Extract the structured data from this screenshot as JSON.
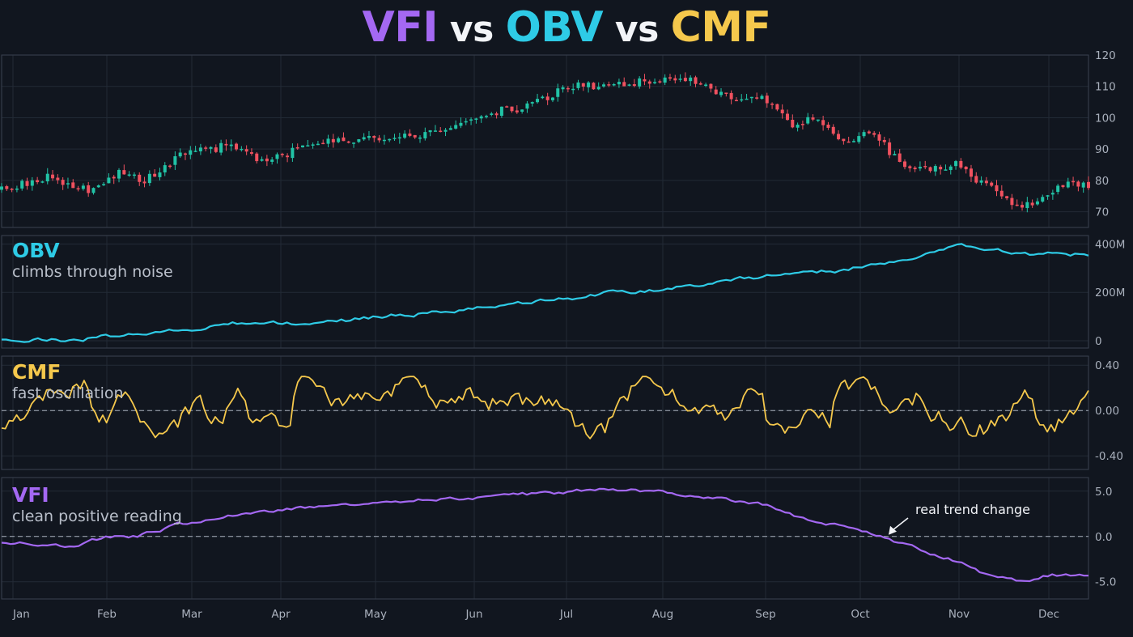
{
  "title": {
    "part1": "VFI",
    "sep1": " vs ",
    "part2": "OBV",
    "sep2": " vs ",
    "part3": "CMF"
  },
  "colors": {
    "background": "#11161f",
    "grid": "#222a36",
    "frame": "#3a4250",
    "up_candle": "#21c3a6",
    "down_candle": "#f0515f",
    "obv": "#2ecbe6",
    "cmf": "#f5c84c",
    "vfi": "#a468f2",
    "zero_line": "#aab1bd"
  },
  "months": [
    "Jan",
    "Feb",
    "Mar",
    "Apr",
    "May",
    "Jun",
    "Jul",
    "Aug",
    "Sep",
    "Oct",
    "Nov",
    "Dec"
  ],
  "panels": {
    "obv": {
      "name": "OBV",
      "desc": "climbs through noise"
    },
    "cmf": {
      "name": "CMF",
      "desc": "fast oscillation"
    },
    "vfi": {
      "name": "VFI",
      "desc": "clean positive reading"
    }
  },
  "annotation": {
    "text": "real trend change",
    "points_to": "VFI crosses zero, early Oct"
  },
  "chart_data": [
    {
      "type": "candlestick",
      "panel": "price",
      "yticks": [
        "120",
        "110",
        "100",
        "90",
        "80",
        "70"
      ],
      "ylim": [
        65,
        120
      ],
      "trend_control_points": [
        {
          "day": 0,
          "value": 77
        },
        {
          "day": 15,
          "value": 81
        },
        {
          "day": 22,
          "value": 79
        },
        {
          "day": 30,
          "value": 77
        },
        {
          "day": 40,
          "value": 83
        },
        {
          "day": 48,
          "value": 80
        },
        {
          "day": 60,
          "value": 88
        },
        {
          "day": 75,
          "value": 91
        },
        {
          "day": 88,
          "value": 86
        },
        {
          "day": 105,
          "value": 92
        },
        {
          "day": 125,
          "value": 94
        },
        {
          "day": 145,
          "value": 95
        },
        {
          "day": 155,
          "value": 98
        },
        {
          "day": 165,
          "value": 102
        },
        {
          "day": 175,
          "value": 103
        },
        {
          "day": 190,
          "value": 110
        },
        {
          "day": 205,
          "value": 110
        },
        {
          "day": 218,
          "value": 112
        },
        {
          "day": 232,
          "value": 112
        },
        {
          "day": 245,
          "value": 106
        },
        {
          "day": 255,
          "value": 106
        },
        {
          "day": 265,
          "value": 98
        },
        {
          "day": 273,
          "value": 100
        },
        {
          "day": 282,
          "value": 93
        },
        {
          "day": 292,
          "value": 95
        },
        {
          "day": 302,
          "value": 84
        },
        {
          "day": 310,
          "value": 84
        },
        {
          "day": 320,
          "value": 85
        },
        {
          "day": 330,
          "value": 78
        },
        {
          "day": 340,
          "value": 72
        },
        {
          "day": 348,
          "value": 74
        },
        {
          "day": 358,
          "value": 80
        },
        {
          "day": 364,
          "value": 78
        }
      ]
    },
    {
      "type": "line",
      "panel": "obv",
      "series": [
        {
          "name": "OBV",
          "approx_points": [
            {
              "day": 0,
              "value": 5
            },
            {
              "day": 25,
              "value": 3
            },
            {
              "day": 40,
              "value": 25
            },
            {
              "day": 60,
              "value": 45
            },
            {
              "day": 85,
              "value": 80
            },
            {
              "day": 105,
              "value": 65
            },
            {
              "day": 125,
              "value": 100
            },
            {
              "day": 145,
              "value": 115
            },
            {
              "day": 165,
              "value": 140
            },
            {
              "day": 190,
              "value": 175
            },
            {
              "day": 205,
              "value": 200
            },
            {
              "day": 220,
              "value": 210
            },
            {
              "day": 235,
              "value": 235
            },
            {
              "day": 250,
              "value": 260
            },
            {
              "day": 265,
              "value": 280
            },
            {
              "day": 280,
              "value": 290
            },
            {
              "day": 300,
              "value": 330
            },
            {
              "day": 320,
              "value": 395
            },
            {
              "day": 330,
              "value": 375
            },
            {
              "day": 345,
              "value": 360
            },
            {
              "day": 364,
              "value": 355
            }
          ]
        }
      ],
      "yticks": [
        "400M",
        "200M",
        "0"
      ],
      "ylim": [
        0,
        420
      ]
    },
    {
      "type": "line",
      "panel": "cmf",
      "series": [
        {
          "name": "CMF",
          "oscillates_between": [
            -0.32,
            0.3
          ]
        }
      ],
      "yticks": [
        "0.40",
        "0.00",
        "-0.40"
      ],
      "ylim": [
        -0.45,
        0.45
      ],
      "zero_line": true
    },
    {
      "type": "line",
      "panel": "vfi",
      "series": [
        {
          "name": "VFI",
          "approx_points": [
            {
              "day": 0,
              "value": -0.6
            },
            {
              "day": 25,
              "value": -1.0
            },
            {
              "day": 35,
              "value": -0.1
            },
            {
              "day": 45,
              "value": 0.0
            },
            {
              "day": 60,
              "value": 1.3
            },
            {
              "day": 75,
              "value": 2.3
            },
            {
              "day": 95,
              "value": 3.0
            },
            {
              "day": 110,
              "value": 3.5
            },
            {
              "day": 130,
              "value": 4.0
            },
            {
              "day": 150,
              "value": 4.1
            },
            {
              "day": 170,
              "value": 4.6
            },
            {
              "day": 185,
              "value": 4.8
            },
            {
              "day": 200,
              "value": 5.3
            },
            {
              "day": 212,
              "value": 5.2
            },
            {
              "day": 225,
              "value": 4.7
            },
            {
              "day": 240,
              "value": 4.3
            },
            {
              "day": 255,
              "value": 3.6
            },
            {
              "day": 265,
              "value": 2.3
            },
            {
              "day": 275,
              "value": 1.5
            },
            {
              "day": 285,
              "value": 0.8
            },
            {
              "day": 293,
              "value": 0.0
            },
            {
              "day": 305,
              "value": -1.2
            },
            {
              "day": 318,
              "value": -2.5
            },
            {
              "day": 330,
              "value": -4.3
            },
            {
              "day": 340,
              "value": -5.0
            },
            {
              "day": 352,
              "value": -4.2
            },
            {
              "day": 364,
              "value": -4.5
            }
          ]
        }
      ],
      "yticks": [
        "5.0",
        "0.0",
        "-5.0"
      ],
      "ylim": [
        -6.5,
        6.5
      ],
      "zero_line": true
    }
  ]
}
